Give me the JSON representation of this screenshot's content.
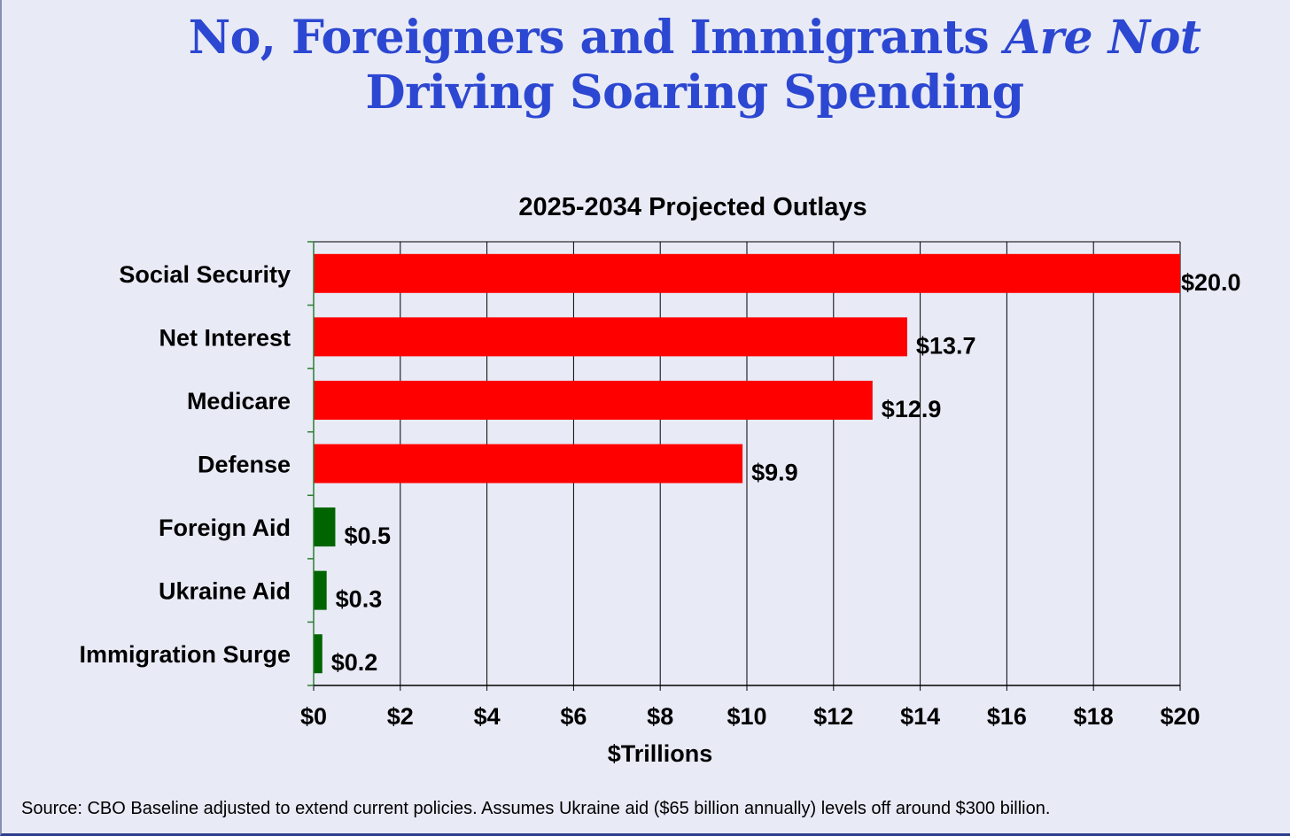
{
  "headline": {
    "line1_plain": "No, Foreigners and Immigrants ",
    "line1_italic": "Are Not",
    "line2": "Driving Soaring Spending"
  },
  "source_note": "Source: CBO Baseline adjusted to extend current policies. Assumes Ukraine aid ($65 billion annually) levels off around $300 billion.",
  "colors": {
    "major": "#ff0000",
    "minor": "#006400",
    "headline": "#2c47d1",
    "background": "#e8eaf6"
  },
  "chart_data": {
    "type": "bar",
    "orientation": "horizontal",
    "title": "2025-2034 Projected Outlays",
    "xlabel": "$Trillions",
    "ylabel": "",
    "xlim": [
      0,
      20
    ],
    "xticks": [
      0,
      2,
      4,
      6,
      8,
      10,
      12,
      14,
      16,
      18,
      20
    ],
    "xtick_labels": [
      "$0",
      "$2",
      "$4",
      "$6",
      "$8",
      "$10",
      "$12",
      "$14",
      "$16",
      "$18",
      "$20"
    ],
    "grid": "vertical",
    "categories": [
      "Social Security",
      "Net Interest",
      "Medicare",
      "Defense",
      "Foreign Aid",
      "Ukraine Aid",
      "Immigration Surge"
    ],
    "values": [
      20.0,
      13.7,
      12.9,
      9.9,
      0.5,
      0.3,
      0.2
    ],
    "value_labels": [
      "$20.0",
      "$13.7",
      "$12.9",
      "$9.9",
      "$0.5",
      "$0.3",
      "$0.2"
    ],
    "bar_colors": [
      "#ff0000",
      "#ff0000",
      "#ff0000",
      "#ff0000",
      "#006400",
      "#006400",
      "#006400"
    ]
  }
}
